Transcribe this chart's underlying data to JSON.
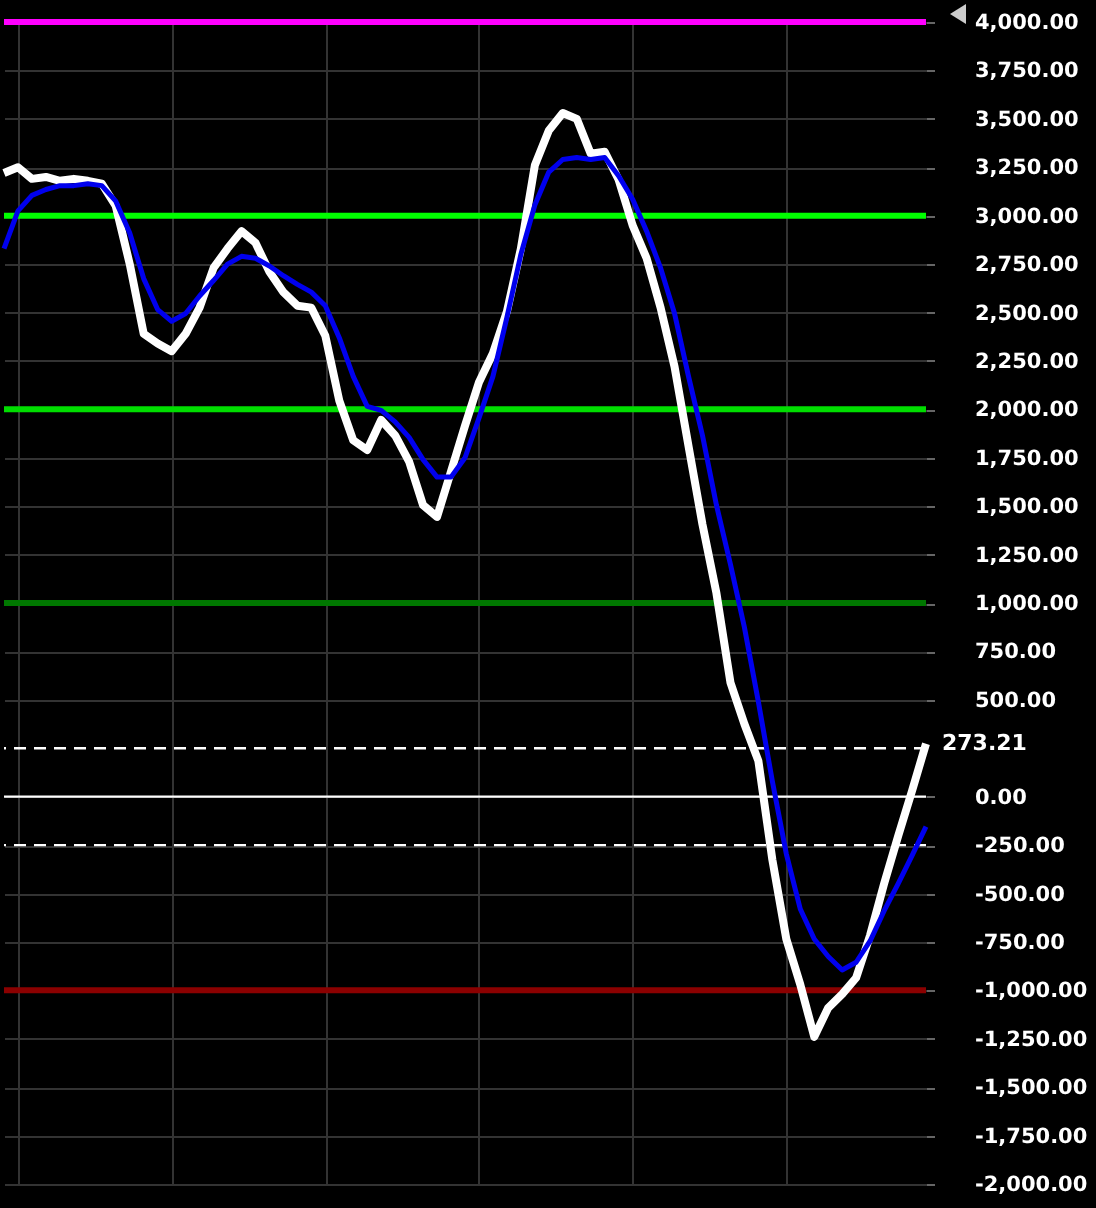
{
  "chart_data": {
    "type": "line",
    "categories": [
      null,
      null,
      null,
      null,
      null,
      null,
      null,
      null,
      null,
      null,
      null,
      null,
      null,
      null,
      null,
      null,
      null,
      null,
      null,
      null,
      null,
      null,
      null,
      null,
      null,
      null,
      null,
      null,
      null,
      null,
      null,
      null,
      null,
      null,
      null,
      null,
      null,
      null,
      null,
      null,
      null,
      null,
      null,
      null,
      null,
      null,
      null,
      null,
      null,
      null,
      null,
      null,
      null,
      null,
      null,
      null,
      null,
      null,
      null,
      null,
      null,
      null,
      null,
      null,
      null,
      null,
      null
    ],
    "series": [
      {
        "color": "#ffffff",
        "values": [
          3220,
          3250,
          3190,
          3200,
          3180,
          3190,
          3180,
          3165,
          3050,
          2750,
          2390,
          2340,
          2300,
          2390,
          2525,
          2730,
          2830,
          2920,
          2860,
          2710,
          2605,
          2535,
          2525,
          2380,
          2045,
          1840,
          1790,
          1945,
          1865,
          1730,
          1505,
          1445,
          1680,
          1915,
          2140,
          2290,
          2505,
          2830,
          3260,
          3440,
          3530,
          3500,
          3320,
          3330,
          3185,
          2950,
          2780,
          2525,
          2220,
          1810,
          1405,
          1050,
          590,
          375,
          185,
          -325,
          -735,
          -970,
          -1240,
          -1090,
          -1020,
          -935,
          -715,
          -450,
          -205,
          30,
          273.21
        ],
        "value_labels": [
          null,
          null,
          null,
          null,
          null,
          null,
          null,
          null,
          null,
          null,
          null,
          null,
          null,
          null,
          null,
          null,
          null,
          null,
          null,
          null,
          null,
          null,
          null,
          null,
          null,
          null,
          null,
          null,
          null,
          null,
          null,
          null,
          null,
          null,
          null,
          null,
          null,
          null,
          null,
          null,
          null,
          null,
          null,
          null,
          null,
          null,
          null,
          null,
          null,
          null,
          null,
          null,
          null,
          null,
          null,
          null,
          null,
          null,
          null,
          null,
          null,
          null,
          null,
          null,
          null,
          null,
          "273.21"
        ]
      },
      {
        "color": "#0000ee",
        "values": [
          2830,
          3025,
          3105,
          3135,
          3155,
          3155,
          3165,
          3155,
          3075,
          2910,
          2675,
          2515,
          2455,
          2495,
          2585,
          2665,
          2750,
          2790,
          2780,
          2740,
          2690,
          2645,
          2605,
          2535,
          2370,
          2170,
          2015,
          1995,
          1935,
          1855,
          1740,
          1650,
          1650,
          1750,
          1955,
          2170,
          2475,
          2800,
          3055,
          3225,
          3290,
          3300,
          3290,
          3300,
          3205,
          3085,
          2920,
          2730,
          2495,
          2170,
          1865,
          1505,
          1200,
          875,
          490,
          80,
          -295,
          -580,
          -735,
          -825,
          -895,
          -855,
          -745,
          -590,
          -450,
          -305,
          -155
        ]
      }
    ],
    "ylim": [
      -2000,
      4000
    ],
    "yticks": [
      {
        "value": 4000,
        "label": "4,000.00"
      },
      {
        "value": 3750,
        "label": "3,750.00"
      },
      {
        "value": 3500,
        "label": "3,500.00"
      },
      {
        "value": 3250,
        "label": "3,250.00"
      },
      {
        "value": 3000,
        "label": "3,000.00"
      },
      {
        "value": 2750,
        "label": "2,750.00"
      },
      {
        "value": 2500,
        "label": "2,500.00"
      },
      {
        "value": 2250,
        "label": "2,250.00"
      },
      {
        "value": 2000,
        "label": "2,000.00"
      },
      {
        "value": 1750,
        "label": "1,750.00"
      },
      {
        "value": 1500,
        "label": "1,500.00"
      },
      {
        "value": 1250,
        "label": "1,250.00"
      },
      {
        "value": 1000,
        "label": "1,000.00"
      },
      {
        "value": 750,
        "label": "750.00"
      },
      {
        "value": 500,
        "label": "500.00"
      },
      {
        "value": 0,
        "label": "0.00"
      },
      {
        "value": -250,
        "label": "-250.00"
      },
      {
        "value": -500,
        "label": "-500.00"
      },
      {
        "value": -750,
        "label": "-750.00"
      },
      {
        "value": -1000,
        "label": "-1,000.00"
      },
      {
        "value": -1250,
        "label": "-1,250.00"
      },
      {
        "value": -1500,
        "label": "-1,500.00"
      },
      {
        "value": -1750,
        "label": "-1,750.00"
      },
      {
        "value": -2000,
        "label": "-2,000.00"
      }
    ],
    "ref_lines": [
      {
        "axis": "y",
        "value": 4000,
        "color": "#ff00ff"
      },
      {
        "axis": "y",
        "value": 3000,
        "color": "#00ff00"
      },
      {
        "axis": "y",
        "value": 2000,
        "color": "#00dd00"
      },
      {
        "axis": "y",
        "value": 1000,
        "color": "#007700"
      },
      {
        "axis": "y",
        "value": 250,
        "color": "#ffffff",
        "line_style": "dashed"
      },
      {
        "axis": "y",
        "value": 0,
        "color": "#ffffff"
      },
      {
        "axis": "y",
        "value": -250,
        "color": "#ffffff",
        "line_style": "dashed"
      },
      {
        "axis": "y",
        "value": -1000,
        "color": "#8b0000"
      }
    ],
    "grid": true,
    "tick_labels": "y",
    "marker": "none",
    "line_style": "solid",
    "legend": false
  }
}
